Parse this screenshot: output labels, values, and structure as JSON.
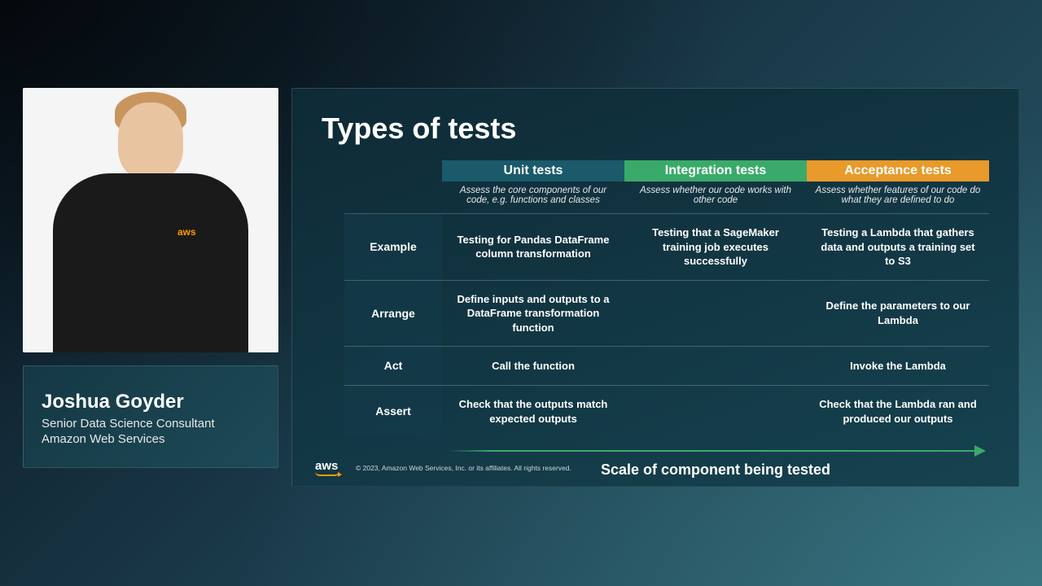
{
  "presenter": {
    "name": "Joshua Goyder",
    "role_line1": "Senior Data Science Consultant",
    "role_line2": "Amazon Web Services",
    "shirt_logo": "aws"
  },
  "slide": {
    "title": "Types of tests",
    "columns": [
      {
        "header": "Unit tests",
        "class": "hdr-unit",
        "desc": "Assess the core components of our code, e.g. functions and classes"
      },
      {
        "header": "Integration tests",
        "class": "hdr-int",
        "desc": "Assess whether our code works with other code"
      },
      {
        "header": "Acceptance tests",
        "class": "hdr-acc",
        "desc": "Assess whether features of our code do what they are defined to do"
      }
    ],
    "rows": [
      {
        "label": "Example",
        "cells": [
          "Testing for Pandas DataFrame column transformation",
          "Testing that a SageMaker training job executes successfully",
          "Testing a Lambda that gathers data and outputs a training set to S3"
        ]
      },
      {
        "label": "Arrange",
        "cells": [
          "Define inputs and outputs to a DataFrame transformation function",
          "",
          "Define the parameters to our Lambda"
        ]
      },
      {
        "label": "Act",
        "cells": [
          "Call the function",
          "",
          "Invoke the Lambda"
        ]
      },
      {
        "label": "Assert",
        "cells": [
          "Check that the outputs match expected outputs",
          "",
          "Check that the Lambda ran and produced our outputs"
        ]
      }
    ],
    "arrow_caption": "Scale of component being tested",
    "footer_logo": "aws",
    "copyright": "© 2023, Amazon Web Services, Inc. or its affiliates. All rights reserved."
  },
  "colors": {
    "unit_header": "#1a5a6a",
    "integration_header": "#3aaa6a",
    "acceptance_header": "#e89a2a",
    "aws_orange": "#ff9900",
    "slide_bg_start": "#0e2a36",
    "slide_bg_end": "#164250"
  }
}
